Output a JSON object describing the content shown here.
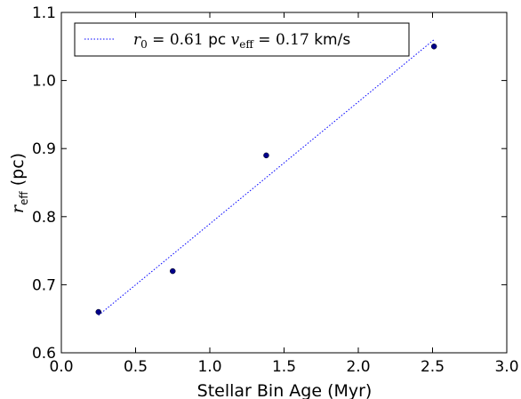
{
  "chart_data": {
    "type": "scatter",
    "title": "",
    "xlabel": "Stellar Bin Age (Myr)",
    "ylabel": {
      "symbol": "r",
      "subscript": "eff",
      "unit": " (pc)"
    },
    "xlim": [
      0.0,
      3.0
    ],
    "ylim": [
      0.6,
      1.1
    ],
    "x_ticks": [
      "0.0",
      "0.5",
      "1.0",
      "1.5",
      "2.0",
      "2.5",
      "3.0"
    ],
    "y_ticks": [
      "0.6",
      "0.7",
      "0.8",
      "0.9",
      "1.0",
      "1.1"
    ],
    "grid": false,
    "legend_position": "top-left",
    "series": [
      {
        "kind": "points",
        "color": "#00008b",
        "x": [
          0.25,
          0.75,
          1.38,
          2.51
        ],
        "y": [
          0.66,
          0.72,
          0.89,
          1.05
        ]
      },
      {
        "kind": "fit-line",
        "style": "dotted",
        "color": "#0000ff",
        "x": [
          0.25,
          2.51
        ],
        "y": [
          0.655,
          1.06
        ]
      }
    ],
    "legend": {
      "r0_symbol": "r",
      "r0_sub": "0",
      "r0_value": " = 0.61 ",
      "r0_unit": "pc ",
      "v_symbol": "v",
      "v_sub": "eff",
      "v_value": " = 0.17 ",
      "v_unit": "km/s"
    }
  }
}
